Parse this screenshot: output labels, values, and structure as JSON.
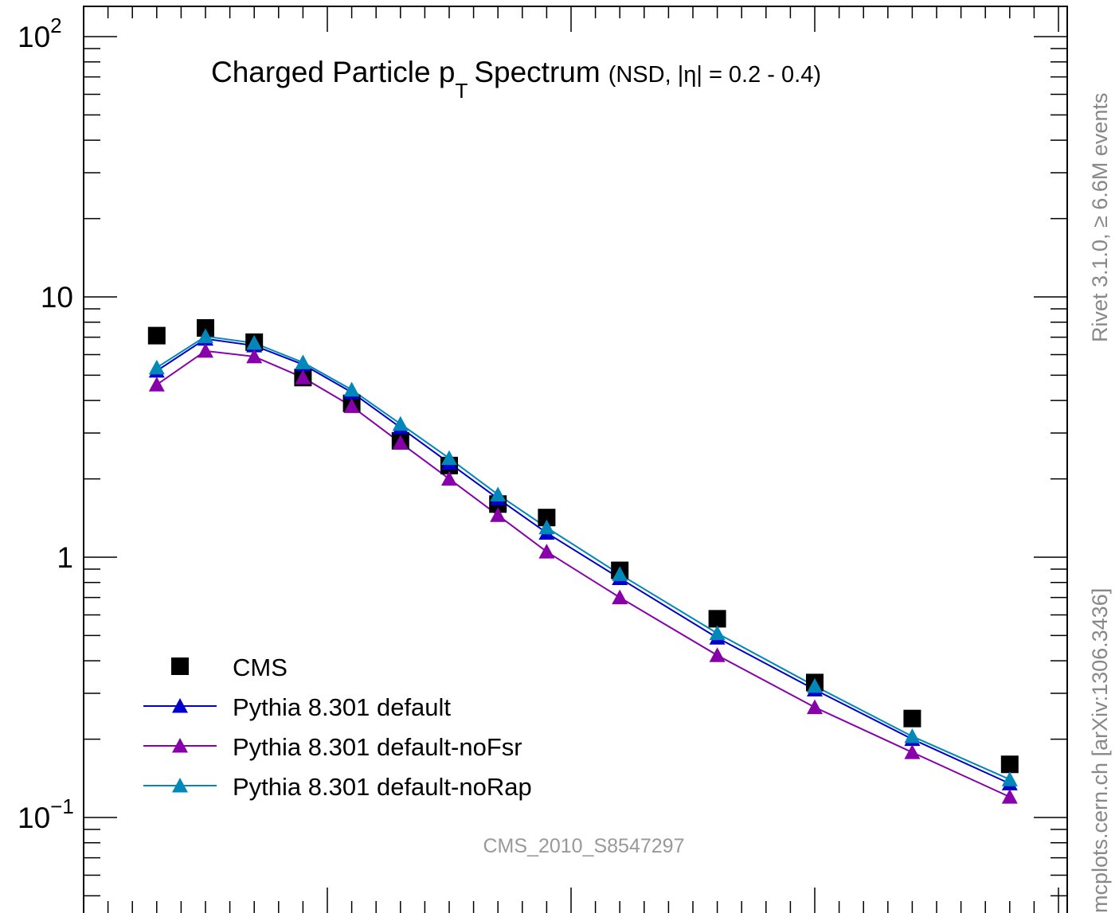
{
  "chart_data": {
    "type": "line",
    "title_main": "Charged Particle p",
    "title_sub": "T",
    "title_rest": "Spectrum",
    "title_extra": "(NSD, |η| = 0.2 - 0.4)",
    "watermark": "CMS_2010_S8547297",
    "side_label_top": "Rivet 3.1.0, ≥ 6.6M events",
    "side_label_bottom": "mcplots.cern.ch [arXiv:1306.3436]",
    "y_scale": "log",
    "ylim": [
      0.05,
      130
    ],
    "xlim": [
      0,
      3.8
    ],
    "x_major_ticks": [
      0,
      1,
      2,
      3
    ],
    "y_tick_labels": [
      {
        "value": 100,
        "base": "10",
        "exp": "2"
      },
      {
        "value": 10,
        "base": "10",
        "exp": ""
      },
      {
        "value": 1,
        "base": "1",
        "exp": ""
      },
      {
        "value": 0.1,
        "base": "10",
        "exp": "−1"
      }
    ],
    "x": [
      0.3,
      0.5,
      0.7,
      0.9,
      1.1,
      1.3,
      1.5,
      1.7,
      1.9,
      2.2,
      2.6,
      3.0,
      3.4,
      3.8
    ],
    "legend_position": "bottom-left",
    "series": [
      {
        "name": "CMS",
        "style": "marker",
        "color": "#000000",
        "values": [
          7.1,
          7.6,
          6.7,
          4.9,
          3.9,
          2.8,
          2.25,
          1.6,
          1.42,
          0.89,
          0.58,
          0.33,
          0.24,
          0.16
        ]
      },
      {
        "name": "Pythia 8.301 default",
        "style": "line",
        "color": "#0000cc",
        "values": [
          5.2,
          6.9,
          6.5,
          5.5,
          4.3,
          3.15,
          2.3,
          1.68,
          1.24,
          0.83,
          0.49,
          0.31,
          0.2,
          0.135
        ]
      },
      {
        "name": "Pythia 8.301 default-noFsr",
        "style": "line",
        "color": "#8800aa",
        "values": [
          4.6,
          6.2,
          5.9,
          4.9,
          3.8,
          2.75,
          2.0,
          1.45,
          1.05,
          0.7,
          0.42,
          0.265,
          0.178,
          0.12
        ]
      },
      {
        "name": "Pythia 8.301 default-noRap",
        "style": "line",
        "color": "#0088bb",
        "values": [
          5.35,
          7.05,
          6.65,
          5.6,
          4.4,
          3.25,
          2.4,
          1.74,
          1.3,
          0.86,
          0.51,
          0.32,
          0.205,
          0.14
        ]
      }
    ]
  }
}
